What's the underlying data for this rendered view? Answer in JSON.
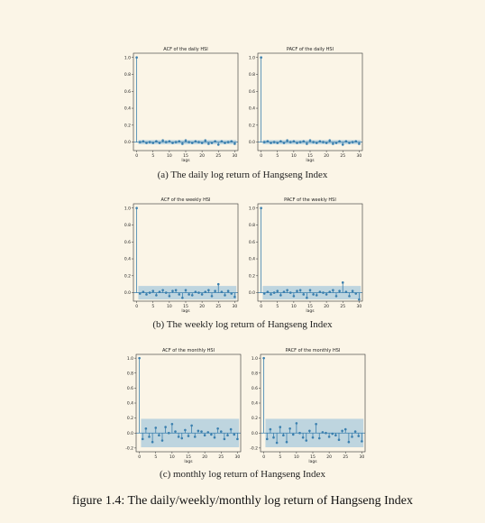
{
  "colors": {
    "marker": "#3a7fae",
    "band": "#a9c9dc",
    "axis": "#333333",
    "zero": "#3a7fae"
  },
  "captions": {
    "daily": "(a)  The daily log return of Hangseng Index",
    "weekly": "(b)  The weekly log return of Hangseng Index",
    "monthly": "(c)  monthly log return of Hangseng Index",
    "figure": "figure 1.4: The daily/weekly/monthly log return of Hangseng Index"
  },
  "chart_data": [
    {
      "type": "stem",
      "title": "ACF of  the daily HSI",
      "xlabel": "lags",
      "ylabel": "",
      "xlim": [
        -1,
        31
      ],
      "ylim": [
        -0.1,
        1.05
      ],
      "yticks": [
        "0.0",
        "0.2",
        "0.4",
        "0.6",
        "0.8",
        "1.0"
      ],
      "xticks": [
        "0",
        "5",
        "10",
        "15",
        "20",
        "25",
        "30"
      ],
      "band": 0.025,
      "values": [
        1.0,
        0.0,
        0.01,
        -0.01,
        0.0,
        -0.01,
        0.01,
        -0.01,
        0.02,
        0.0,
        0.01,
        -0.01,
        0.0,
        0.01,
        -0.02,
        0.02,
        0.0,
        -0.01,
        0.01,
        0.0,
        -0.01,
        0.02,
        -0.02,
        -0.01,
        0.01,
        -0.03,
        0.01,
        -0.01,
        0.0,
        0.01,
        -0.02
      ]
    },
    {
      "type": "stem",
      "title": "PACF of the daily HSI",
      "xlabel": "lags",
      "ylabel": "",
      "xlim": [
        -1,
        31
      ],
      "ylim": [
        -0.1,
        1.05
      ],
      "yticks": [
        "0.0",
        "0.2",
        "0.4",
        "0.6",
        "0.8",
        "1.0"
      ],
      "xticks": [
        "0",
        "5",
        "10",
        "15",
        "20",
        "25",
        "30"
      ],
      "band": 0.025,
      "values": [
        1.0,
        0.0,
        0.01,
        -0.01,
        0.0,
        -0.01,
        0.01,
        -0.01,
        0.02,
        0.0,
        0.01,
        -0.01,
        0.0,
        0.01,
        -0.02,
        0.02,
        0.0,
        -0.01,
        0.01,
        0.0,
        -0.01,
        0.02,
        -0.02,
        -0.01,
        0.01,
        -0.03,
        0.01,
        -0.01,
        0.0,
        0.01,
        -0.02
      ]
    },
    {
      "type": "stem",
      "title": "ACF of  the weekly HSI",
      "xlabel": "lags",
      "ylabel": "",
      "xlim": [
        -1,
        31
      ],
      "ylim": [
        -0.1,
        1.05
      ],
      "yticks": [
        "0.0",
        "0.2",
        "0.4",
        "0.6",
        "0.8",
        "1.0"
      ],
      "xticks": [
        "0",
        "5",
        "10",
        "15",
        "20",
        "25",
        "30"
      ],
      "band": 0.08,
      "values": [
        1.0,
        -0.01,
        0.01,
        -0.02,
        0.0,
        0.02,
        -0.03,
        0.01,
        0.03,
        0.0,
        -0.04,
        0.02,
        0.03,
        -0.02,
        -0.06,
        0.03,
        -0.02,
        -0.03,
        0.01,
        0.0,
        -0.02,
        0.01,
        0.03,
        -0.04,
        0.02,
        0.1,
        0.01,
        -0.03,
        0.02,
        -0.01,
        -0.05
      ]
    },
    {
      "type": "stem",
      "title": "PACF of the weekly HSI",
      "xlabel": "lags",
      "ylabel": "",
      "xlim": [
        -1,
        31
      ],
      "ylim": [
        -0.1,
        1.05
      ],
      "yticks": [
        "0.0",
        "0.2",
        "0.4",
        "0.6",
        "0.8",
        "1.0"
      ],
      "xticks": [
        "0",
        "5",
        "10",
        "15",
        "20",
        "25",
        "30"
      ],
      "band": 0.08,
      "values": [
        1.0,
        -0.01,
        0.01,
        -0.02,
        0.0,
        0.02,
        -0.03,
        0.01,
        0.03,
        0.0,
        -0.04,
        0.02,
        0.03,
        -0.02,
        -0.06,
        0.03,
        -0.02,
        -0.03,
        0.01,
        0.0,
        -0.02,
        0.01,
        0.03,
        -0.04,
        0.02,
        0.12,
        0.01,
        -0.04,
        0.02,
        -0.01,
        -0.08
      ]
    },
    {
      "type": "stem",
      "title": "ACF of  the monthly HSI",
      "xlabel": "lags",
      "ylabel": "",
      "xlim": [
        -1,
        31
      ],
      "ylim": [
        -0.25,
        1.05
      ],
      "yticks": [
        "-0.2",
        "0.0",
        "0.2",
        "0.4",
        "0.6",
        "0.8",
        "1.0"
      ],
      "xticks": [
        "0",
        "5",
        "10",
        "15",
        "20",
        "25",
        "30"
      ],
      "band": 0.19,
      "values": [
        1.0,
        -0.08,
        0.06,
        -0.05,
        -0.12,
        0.07,
        -0.03,
        -0.1,
        0.08,
        0.0,
        0.12,
        0.02,
        -0.05,
        -0.07,
        0.04,
        -0.04,
        0.1,
        -0.05,
        0.03,
        0.02,
        -0.03,
        0.01,
        -0.02,
        -0.06,
        0.06,
        0.02,
        -0.08,
        -0.03,
        0.05,
        -0.02,
        -0.08
      ]
    },
    {
      "type": "stem",
      "title": "PACF of the monthly HSI",
      "xlabel": "lags",
      "ylabel": "",
      "xlim": [
        -1,
        31
      ],
      "ylim": [
        -0.25,
        1.05
      ],
      "yticks": [
        "-0.2",
        "0.0",
        "0.2",
        "0.4",
        "0.6",
        "0.8",
        "1.0"
      ],
      "xticks": [
        "0",
        "5",
        "10",
        "15",
        "20",
        "25",
        "30"
      ],
      "band": 0.19,
      "values": [
        1.0,
        -0.08,
        0.05,
        -0.06,
        -0.13,
        0.08,
        -0.03,
        -0.12,
        0.06,
        -0.02,
        0.13,
        0.0,
        -0.06,
        -0.1,
        0.03,
        -0.06,
        0.12,
        -0.07,
        0.01,
        0.0,
        -0.05,
        -0.01,
        -0.03,
        -0.09,
        0.03,
        0.05,
        -0.12,
        -0.05,
        0.02,
        -0.04,
        -0.11
      ]
    }
  ]
}
